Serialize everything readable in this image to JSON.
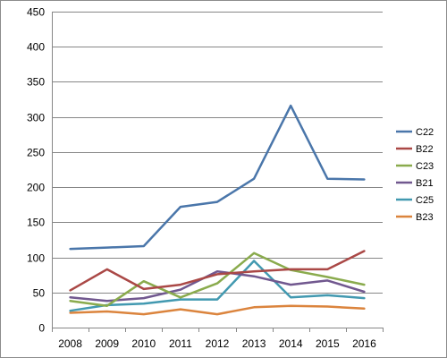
{
  "chart_data": {
    "type": "line",
    "title": "",
    "xlabel": "",
    "ylabel": "",
    "categories": [
      "2008",
      "2009",
      "2010",
      "2011",
      "2012",
      "2013",
      "2014",
      "2015",
      "2016"
    ],
    "ylim": [
      0,
      450
    ],
    "yticks": [
      0,
      50,
      100,
      150,
      200,
      250,
      300,
      350,
      400,
      450
    ],
    "grid": "horizontal",
    "legend": "right",
    "series": [
      {
        "name": "C22",
        "color": "#4a76aa",
        "values": [
          112,
          114,
          116,
          172,
          179,
          212,
          316,
          212,
          211
        ]
      },
      {
        "name": "B22",
        "color": "#aa4846",
        "values": [
          53,
          83,
          55,
          61,
          76,
          80,
          83,
          83,
          109
        ]
      },
      {
        "name": "C23",
        "color": "#8aab4d",
        "values": [
          38,
          31,
          66,
          43,
          63,
          106,
          82,
          72,
          61
        ]
      },
      {
        "name": "B21",
        "color": "#71588f",
        "values": [
          43,
          38,
          42,
          54,
          80,
          73,
          61,
          67,
          51
        ]
      },
      {
        "name": "C25",
        "color": "#4299b0",
        "values": [
          24,
          32,
          34,
          40,
          40,
          95,
          43,
          46,
          42
        ]
      },
      {
        "name": "B23",
        "color": "#db843d",
        "values": [
          21,
          23,
          19,
          26,
          19,
          29,
          31,
          30,
          27
        ]
      }
    ]
  }
}
